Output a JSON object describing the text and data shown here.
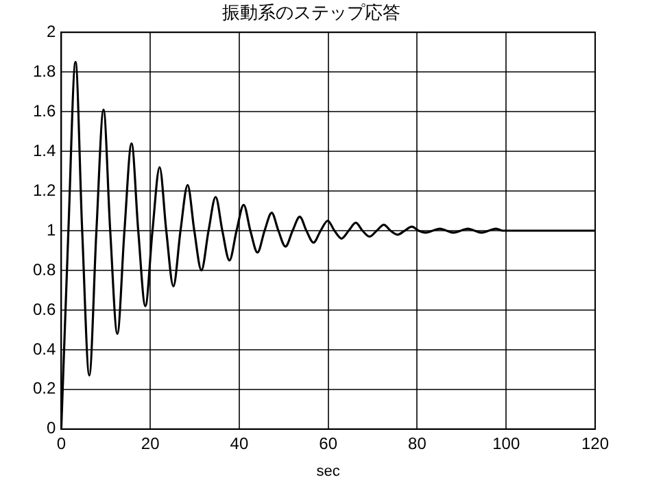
{
  "chart_data": {
    "type": "line",
    "title": "振動系のステップ応答",
    "xlabel": "sec",
    "xlim": [
      0,
      120
    ],
    "xticks": [
      0,
      20,
      40,
      60,
      80,
      100,
      120
    ],
    "ylim": [
      0,
      2
    ],
    "yticks": [
      0,
      0.2,
      0.4,
      0.6,
      0.8,
      1,
      1.2,
      1.4,
      1.6,
      1.8,
      2
    ],
    "grid": true,
    "legend": false,
    "marker": "none",
    "line_style": "solid",
    "series": [
      {
        "color": "#000000",
        "x": [
          0,
          1.6,
          3.2,
          4.7,
          6.3,
          7.9,
          9.5,
          11.0,
          12.6,
          14.2,
          15.8,
          17.3,
          18.9,
          20.5,
          22.1,
          23.6,
          25.2,
          26.8,
          28.4,
          29.9,
          31.5,
          33.1,
          34.7,
          36.2,
          37.8,
          39.4,
          41.0,
          42.5,
          44.1,
          45.7,
          47.3,
          48.8,
          50.4,
          52.0,
          53.6,
          55.1,
          56.7,
          58.3,
          59.9,
          61.4,
          63.0,
          64.6,
          66.2,
          67.7,
          69.3,
          70.9,
          72.5,
          74.0,
          75.6,
          77.2,
          78.8,
          80.3,
          81.9,
          83.5,
          85.1,
          86.6,
          88.2,
          89.8,
          91.4,
          92.9,
          94.5,
          96.1,
          97.7,
          99.2,
          100.8,
          110,
          120
        ],
        "values": [
          0,
          1.0,
          1.85,
          1.0,
          0.27,
          1.0,
          1.61,
          1.0,
          0.48,
          1.0,
          1.44,
          1.0,
          0.62,
          1.0,
          1.32,
          1.0,
          0.72,
          1.0,
          1.23,
          1.0,
          0.8,
          1.0,
          1.17,
          1.0,
          0.85,
          1.0,
          1.13,
          1.0,
          0.89,
          1.0,
          1.09,
          1.0,
          0.92,
          1.0,
          1.07,
          1.0,
          0.94,
          1.0,
          1.05,
          1.0,
          0.96,
          1.0,
          1.04,
          1.0,
          0.97,
          1.0,
          1.03,
          1.0,
          0.98,
          1.0,
          1.02,
          1.0,
          0.99,
          1.0,
          1.01,
          1.0,
          0.99,
          1.0,
          1.01,
          1.0,
          0.99,
          1.0,
          1.01,
          1.0,
          1.0,
          1.0,
          1.0
        ]
      }
    ]
  }
}
